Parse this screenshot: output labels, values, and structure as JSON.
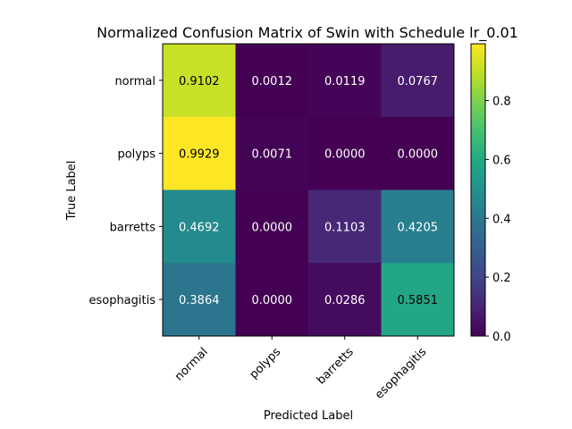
{
  "chart_data": {
    "type": "heatmap",
    "title": "Normalized Confusion Matrix  of Swin with Schedule lr_0.01",
    "xlabel": "Predicted Label",
    "ylabel": "True Label",
    "x_categories": [
      "normal",
      "polyps",
      "barretts",
      "esophagitis"
    ],
    "y_categories": [
      "normal",
      "polyps",
      "barretts",
      "esophagitis"
    ],
    "values": [
      [
        0.9102,
        0.0012,
        0.0119,
        0.0767
      ],
      [
        0.9929,
        0.0071,
        0.0,
        0.0
      ],
      [
        0.4692,
        0.0,
        0.1103,
        0.4205
      ],
      [
        0.3864,
        0.0,
        0.0286,
        0.5851
      ]
    ],
    "cell_labels": [
      [
        "0.9102",
        "0.0012",
        "0.0119",
        "0.0767"
      ],
      [
        "0.9929",
        "0.0071",
        "0.0000",
        "0.0000"
      ],
      [
        "0.4692",
        "0.0000",
        "0.1103",
        "0.4205"
      ],
      [
        "0.3864",
        "0.0000",
        "0.0286",
        "0.5851"
      ]
    ],
    "colormap": "viridis",
    "colorbar": {
      "range": [
        0.0,
        0.9929
      ],
      "ticks": [
        0.0,
        0.2,
        0.4,
        0.6,
        0.8
      ],
      "tick_labels": [
        "0.0",
        "0.2",
        "0.4",
        "0.6",
        "0.8"
      ]
    },
    "grid": false
  }
}
